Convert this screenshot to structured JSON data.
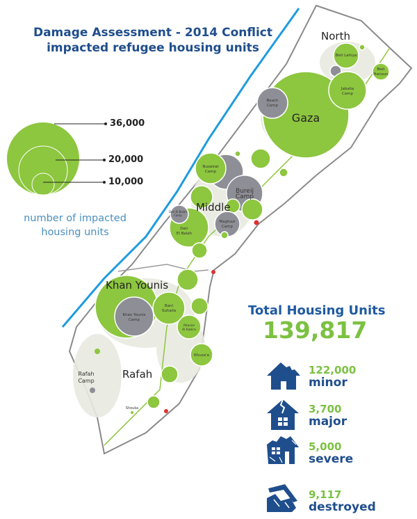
{
  "title": {
    "line1": "Damage Assessment - 2014 Conflict",
    "line2": "impacted refugee housing units"
  },
  "legend": {
    "values": [
      "36,000",
      "20,000",
      "10,000"
    ],
    "caption_line1": "number of impacted",
    "caption_line2": "housing units"
  },
  "regions": {
    "north": "North",
    "gaza": "Gaza",
    "middle": "Middle",
    "khan_younis": "Khan Younis",
    "rafah": "Rafah"
  },
  "places": {
    "beit_lahiya": "Beit Lahiya",
    "beit_hanoun": [
      "Beit",
      "Hanoun"
    ],
    "jabalia": [
      "Jabalia",
      "Camp"
    ],
    "beach": [
      "Beach",
      "Camp"
    ],
    "nuseirat": [
      "Nuseirat",
      "Camp"
    ],
    "bureij": [
      "Bureij",
      "Camp"
    ],
    "maghazi": [
      "Maghazi",
      "Camp"
    ],
    "deir_camp": [
      "Deir El-Balah",
      "Camp"
    ],
    "deir": [
      "Deir",
      "El Balah"
    ],
    "khan_younis_camp": [
      "Khan Younis",
      "Camp"
    ],
    "bani_suhaila": [
      "Bani",
      "Suhaila"
    ],
    "abasan": [
      "Abasan",
      "Al Kabira"
    ],
    "khuzaa": "Khuza'a",
    "rafah_camp": [
      "Rafah",
      "Camp"
    ],
    "shouka": "Shouka"
  },
  "colors": {
    "green": "#8dc63f",
    "gray": "#8e8e96",
    "blue": "#1f4e8c",
    "coast": "#1e9be0"
  },
  "totals": {
    "label": "Total Housing Units",
    "value": "139,817",
    "categories": [
      {
        "value": "122,000",
        "label": "minor",
        "icon": "house-minor-icon"
      },
      {
        "value": "3,700",
        "label": "major",
        "icon": "house-cracked-icon"
      },
      {
        "value": "5,000",
        "label": "severe",
        "icon": "house-damaged-icon"
      },
      {
        "value": "9,117",
        "label": "destroyed",
        "icon": "house-collapsed-icon"
      }
    ]
  }
}
